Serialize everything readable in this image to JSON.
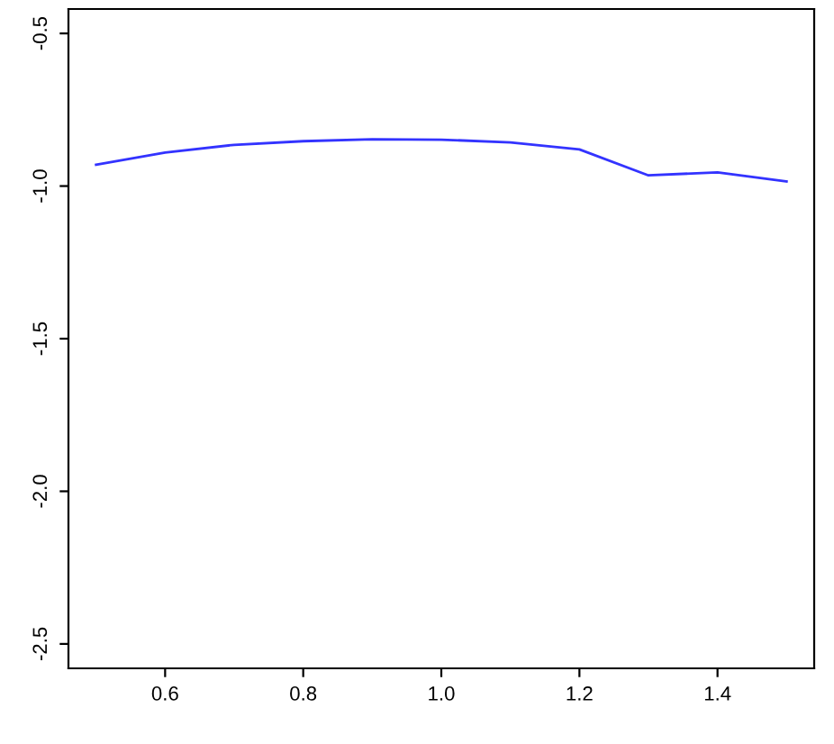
{
  "chart_data": {
    "type": "line",
    "x": [
      0.5,
      0.6,
      0.7,
      0.8,
      0.9,
      1.0,
      1.1,
      1.2,
      1.3,
      1.4,
      1.5
    ],
    "series": [
      {
        "color": "#3333ff",
        "values": [
          -0.93,
          -0.89,
          -0.865,
          -0.853,
          -0.847,
          -0.848,
          -0.857,
          -0.88,
          -0.965,
          -0.955,
          -0.985
        ]
      }
    ],
    "xlim": [
      0.46,
      1.54
    ],
    "ylim": [
      -2.58,
      -0.42
    ],
    "xticks": [
      {
        "value": 0.6,
        "label": "0.6"
      },
      {
        "value": 0.8,
        "label": "0.8"
      },
      {
        "value": 1.0,
        "label": "1.0"
      },
      {
        "value": 1.2,
        "label": "1.2"
      },
      {
        "value": 1.4,
        "label": "1.4"
      }
    ],
    "yticks": [
      {
        "value": -2.5,
        "label": "-2.5"
      },
      {
        "value": -2.0,
        "label": "-2.0"
      },
      {
        "value": -1.5,
        "label": "-1.5"
      },
      {
        "value": -1.0,
        "label": "-1.0"
      },
      {
        "value": -0.5,
        "label": "-0.5"
      }
    ],
    "grid": false,
    "legend": false,
    "marker": "none",
    "line_style": "solid"
  }
}
